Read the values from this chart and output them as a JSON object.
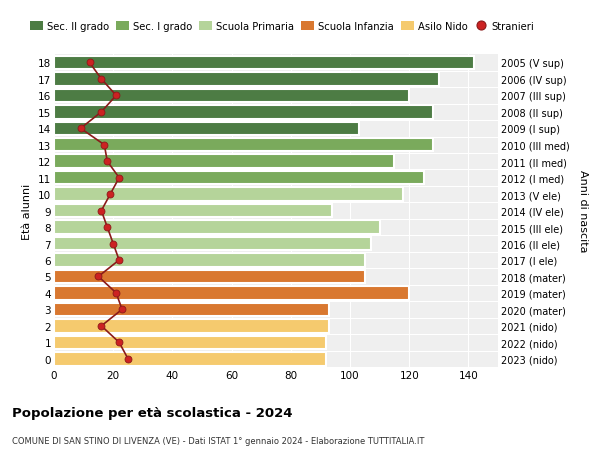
{
  "ages": [
    18,
    17,
    16,
    15,
    14,
    13,
    12,
    11,
    10,
    9,
    8,
    7,
    6,
    5,
    4,
    3,
    2,
    1,
    0
  ],
  "years": [
    "2005 (V sup)",
    "2006 (IV sup)",
    "2007 (III sup)",
    "2008 (II sup)",
    "2009 (I sup)",
    "2010 (III med)",
    "2011 (II med)",
    "2012 (I med)",
    "2013 (V ele)",
    "2014 (IV ele)",
    "2015 (III ele)",
    "2016 (II ele)",
    "2017 (I ele)",
    "2018 (mater)",
    "2019 (mater)",
    "2020 (mater)",
    "2021 (nido)",
    "2022 (nido)",
    "2023 (nido)"
  ],
  "bar_values": [
    142,
    130,
    120,
    128,
    103,
    128,
    115,
    125,
    118,
    94,
    110,
    107,
    105,
    105,
    120,
    93,
    93,
    92,
    92
  ],
  "stranieri_values": [
    12,
    16,
    21,
    16,
    9,
    17,
    18,
    22,
    19,
    16,
    18,
    20,
    22,
    15,
    21,
    23,
    16,
    22,
    25
  ],
  "color_sec2": "#4d7c44",
  "color_sec1": "#7aaa5c",
  "color_prim": "#b5d49a",
  "color_inf": "#d97830",
  "color_nido": "#f5ca6e",
  "color_stranieri_dot": "#cc2222",
  "color_stranieri_line": "#8b1a1a",
  "legend_labels": [
    "Sec. II grado",
    "Sec. I grado",
    "Scuola Primaria",
    "Scuola Infanzia",
    "Asilo Nido",
    "Stranieri"
  ],
  "title": "Popolazione per età scolastica - 2024",
  "subtitle": "COMUNE DI SAN STINO DI LIVENZA (VE) - Dati ISTAT 1° gennaio 2024 - Elaborazione TUTTITALIA.IT",
  "ylabel_left": "Età alunni",
  "ylabel_right": "Anni di nascita",
  "xlim_max": 150,
  "xticks": [
    0,
    20,
    40,
    60,
    80,
    100,
    120,
    140
  ],
  "bar_height": 0.82,
  "bg_color": "#efefef"
}
